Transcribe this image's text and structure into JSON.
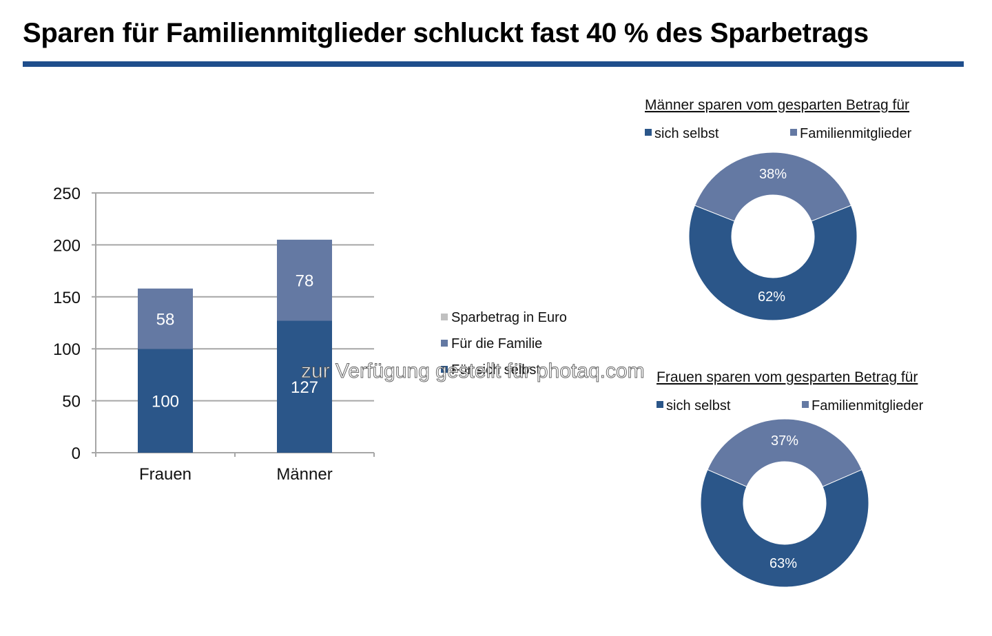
{
  "header": {
    "title": "Sparen für Familienmitglieder schluckt fast 40 % des Sparbetrags"
  },
  "colors": {
    "self": "#2b5689",
    "family": "#6479a3",
    "total": "#c0c0c0",
    "rule": "#1f4e8c",
    "grid": "#a6a6a6"
  },
  "chart_data": [
    {
      "type": "bar",
      "stacked": true,
      "title": "",
      "xlabel": "",
      "ylabel": "",
      "categories": [
        "Frauen",
        "Männer"
      ],
      "ylim": [
        0,
        250
      ],
      "yticks": [
        0,
        50,
        100,
        150,
        200,
        250
      ],
      "grid": true,
      "legend_position": "right",
      "legend": [
        "Sparbetrag in Euro",
        "Für die Familie",
        "Für sich selbst"
      ],
      "series": [
        {
          "name": "Für sich selbst",
          "values": [
            100,
            127
          ]
        },
        {
          "name": "Für die Familie",
          "values": [
            58,
            78
          ]
        }
      ]
    },
    {
      "type": "pie",
      "donut": true,
      "title": "Männer sparen vom gesparten Betrag für",
      "legend_position": "top",
      "categories": [
        "sich selbst",
        "Familienmitglieder"
      ],
      "values": [
        62,
        38
      ],
      "labels": [
        "62%",
        "38%"
      ]
    },
    {
      "type": "pie",
      "donut": true,
      "title": "Frauen sparen vom gesparten Betrag für",
      "legend_position": "top",
      "categories": [
        "sich selbst",
        "Familienmitglieder"
      ],
      "values": [
        63,
        37
      ],
      "labels": [
        "63%",
        "37%"
      ]
    }
  ],
  "watermark": "zur Verfügung gestellt für photaq.com"
}
